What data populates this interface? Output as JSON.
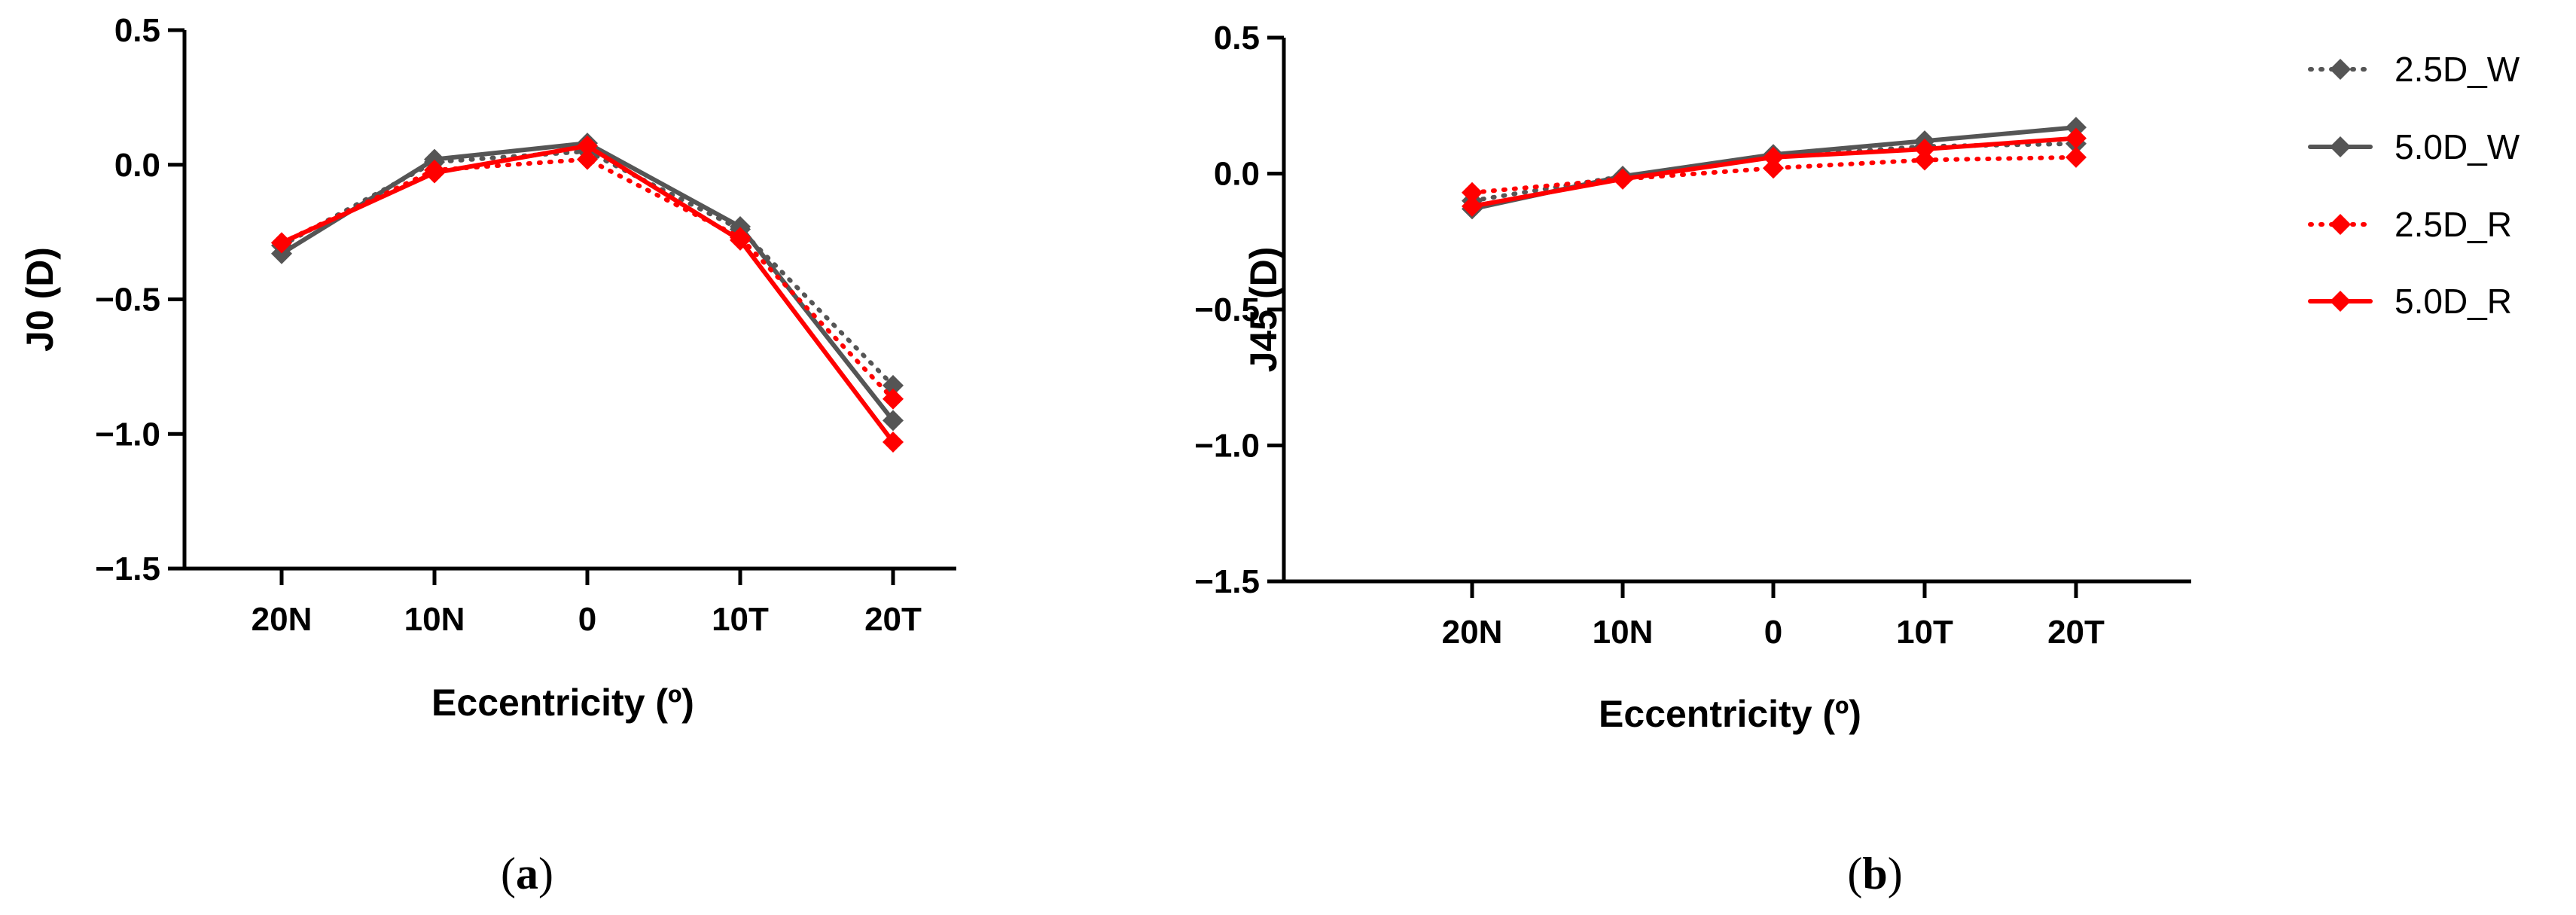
{
  "chart_data": [
    {
      "type": "line",
      "panel_label": "a",
      "categories": [
        "20N",
        "10N",
        "0",
        "10T",
        "20T"
      ],
      "xlabel": "Eccentricity (º)",
      "ylabel": "J0 (D)",
      "ylim": [
        -1.5,
        0.5
      ],
      "yticks": [
        "0.5",
        "0.0",
        "−0.5",
        "−1.0",
        "−1.5"
      ],
      "series": [
        {
          "name": "2.5D_W",
          "color": "#555555",
          "style": "dotted",
          "values": [
            -0.3,
            0.01,
            0.05,
            -0.24,
            -0.82
          ]
        },
        {
          "name": "5.0D_W",
          "color": "#555555",
          "style": "solid",
          "values": [
            -0.33,
            0.02,
            0.08,
            -0.23,
            -0.95
          ]
        },
        {
          "name": "2.5D_R",
          "color": "#ff0000",
          "style": "dotted",
          "values": [
            -0.29,
            -0.02,
            0.02,
            -0.27,
            -0.87
          ]
        },
        {
          "name": "5.0D_R",
          "color": "#ff0000",
          "style": "solid",
          "values": [
            -0.29,
            -0.03,
            0.07,
            -0.28,
            -1.03
          ]
        }
      ]
    },
    {
      "type": "line",
      "panel_label": "b",
      "categories": [
        "20N",
        "10N",
        "0",
        "10T",
        "20T"
      ],
      "xlabel": "Eccentricity (º)",
      "ylabel": "J45 (D)",
      "ylim": [
        -1.5,
        0.5
      ],
      "yticks": [
        "0.5",
        "0.0",
        "−0.5",
        "−1.0",
        "−1.5"
      ],
      "series": [
        {
          "name": "2.5D_W",
          "color": "#555555",
          "style": "dotted",
          "values": [
            -0.1,
            -0.01,
            0.06,
            0.1,
            0.11
          ]
        },
        {
          "name": "5.0D_W",
          "color": "#555555",
          "style": "solid",
          "values": [
            -0.13,
            -0.01,
            0.07,
            0.12,
            0.17
          ]
        },
        {
          "name": "2.5D_R",
          "color": "#ff0000",
          "style": "dotted",
          "values": [
            -0.07,
            -0.02,
            0.02,
            0.05,
            0.06
          ]
        },
        {
          "name": "5.0D_R",
          "color": "#ff0000",
          "style": "solid",
          "values": [
            -0.12,
            -0.02,
            0.06,
            0.09,
            0.13
          ]
        }
      ]
    }
  ],
  "legend": {
    "placement": "right",
    "entries": [
      "2.5D_W",
      "5.0D_W",
      "2.5D_R",
      "5.0D_R"
    ]
  }
}
